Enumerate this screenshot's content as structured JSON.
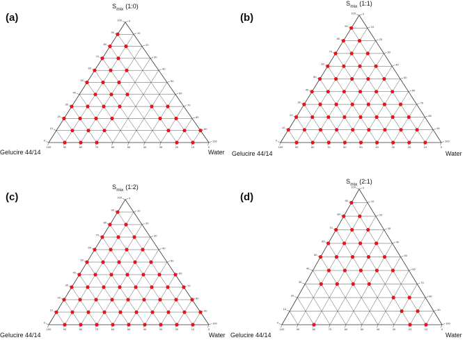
{
  "chart_data": [
    {
      "type": "ternary",
      "panel_label": "(a)",
      "apex_label": {
        "base": "S",
        "sub": "mix",
        "ratio": "(1:0)"
      },
      "left_label": "Gelucire 44/14",
      "right_label": "Water",
      "color": "#e8141c",
      "ticks": [
        0,
        10,
        20,
        30,
        40,
        50,
        60,
        70,
        80,
        90,
        100
      ],
      "points": [
        [
          90,
          10,
          0
        ],
        [
          80,
          20,
          0
        ],
        [
          80,
          10,
          10
        ],
        [
          70,
          30,
          0
        ],
        [
          70,
          20,
          10
        ],
        [
          60,
          40,
          0
        ],
        [
          60,
          30,
          10
        ],
        [
          60,
          20,
          20
        ],
        [
          50,
          50,
          0
        ],
        [
          50,
          40,
          10
        ],
        [
          50,
          30,
          20
        ],
        [
          40,
          50,
          10
        ],
        [
          40,
          40,
          20
        ],
        [
          40,
          30,
          30
        ],
        [
          30,
          70,
          0
        ],
        [
          30,
          60,
          10
        ],
        [
          30,
          50,
          20
        ],
        [
          30,
          40,
          30
        ],
        [
          30,
          20,
          50
        ],
        [
          30,
          10,
          60
        ],
        [
          20,
          80,
          0
        ],
        [
          20,
          70,
          10
        ],
        [
          20,
          60,
          20
        ],
        [
          20,
          50,
          30
        ],
        [
          20,
          20,
          60
        ],
        [
          20,
          10,
          70
        ],
        [
          10,
          80,
          10
        ],
        [
          10,
          70,
          20
        ],
        [
          10,
          60,
          30
        ],
        [
          10,
          20,
          70
        ],
        [
          10,
          10,
          80
        ],
        [
          10,
          0,
          90
        ],
        [
          0,
          90,
          10
        ],
        [
          0,
          80,
          20
        ],
        [
          0,
          70,
          30
        ],
        [
          0,
          20,
          80
        ],
        [
          0,
          10,
          90
        ]
      ]
    },
    {
      "type": "ternary",
      "panel_label": "(b)",
      "apex_label": {
        "base": "S",
        "sub": "mix",
        "ratio": "(1:1)"
      },
      "left_label": "Gelucire 44/14",
      "right_label": "Water",
      "color": "#e8141c",
      "ticks": [
        0,
        10,
        20,
        30,
        40,
        50,
        60,
        70,
        80,
        90,
        100
      ],
      "points": [
        [
          90,
          10,
          0
        ],
        [
          80,
          20,
          0
        ],
        [
          80,
          10,
          10
        ],
        [
          70,
          30,
          0
        ],
        [
          70,
          20,
          10
        ],
        [
          70,
          10,
          20
        ],
        [
          60,
          40,
          0
        ],
        [
          60,
          30,
          10
        ],
        [
          60,
          20,
          20
        ],
        [
          60,
          10,
          30
        ],
        [
          50,
          50,
          0
        ],
        [
          50,
          40,
          10
        ],
        [
          50,
          30,
          20
        ],
        [
          50,
          20,
          30
        ],
        [
          50,
          10,
          40
        ],
        [
          40,
          60,
          0
        ],
        [
          40,
          50,
          10
        ],
        [
          40,
          40,
          20
        ],
        [
          40,
          30,
          30
        ],
        [
          40,
          20,
          40
        ],
        [
          40,
          10,
          50
        ],
        [
          30,
          70,
          0
        ],
        [
          30,
          60,
          10
        ],
        [
          30,
          50,
          20
        ],
        [
          30,
          40,
          30
        ],
        [
          30,
          30,
          40
        ],
        [
          30,
          20,
          50
        ],
        [
          30,
          10,
          60
        ],
        [
          20,
          80,
          0
        ],
        [
          20,
          70,
          10
        ],
        [
          20,
          60,
          20
        ],
        [
          20,
          50,
          30
        ],
        [
          20,
          40,
          40
        ],
        [
          20,
          30,
          50
        ],
        [
          20,
          20,
          60
        ],
        [
          20,
          10,
          70
        ],
        [
          10,
          90,
          0
        ],
        [
          10,
          80,
          10
        ],
        [
          10,
          70,
          20
        ],
        [
          10,
          60,
          30
        ],
        [
          10,
          50,
          40
        ],
        [
          10,
          40,
          50
        ],
        [
          10,
          30,
          60
        ],
        [
          10,
          20,
          70
        ],
        [
          10,
          10,
          80
        ],
        [
          0,
          90,
          10
        ],
        [
          0,
          80,
          20
        ],
        [
          0,
          70,
          30
        ],
        [
          0,
          60,
          40
        ],
        [
          0,
          50,
          50
        ],
        [
          0,
          40,
          60
        ],
        [
          0,
          30,
          70
        ],
        [
          0,
          20,
          80
        ],
        [
          0,
          10,
          90
        ]
      ]
    },
    {
      "type": "ternary",
      "panel_label": "(c)",
      "apex_label": {
        "base": "S",
        "sub": "mix",
        "ratio": "(1:2)"
      },
      "left_label": "Gelucire 44/14",
      "right_label": "Water",
      "color": "#e8141c",
      "ticks": [
        0,
        10,
        20,
        30,
        40,
        50,
        60,
        70,
        80,
        90,
        100
      ],
      "points": [
        [
          90,
          10,
          0
        ],
        [
          80,
          20,
          0
        ],
        [
          80,
          10,
          10
        ],
        [
          70,
          30,
          0
        ],
        [
          70,
          20,
          10
        ],
        [
          70,
          10,
          20
        ],
        [
          60,
          40,
          0
        ],
        [
          60,
          30,
          10
        ],
        [
          60,
          20,
          20
        ],
        [
          60,
          10,
          30
        ],
        [
          50,
          50,
          0
        ],
        [
          50,
          40,
          10
        ],
        [
          50,
          30,
          20
        ],
        [
          50,
          20,
          30
        ],
        [
          50,
          10,
          40
        ],
        [
          40,
          60,
          0
        ],
        [
          40,
          50,
          10
        ],
        [
          40,
          40,
          20
        ],
        [
          40,
          30,
          30
        ],
        [
          40,
          20,
          40
        ],
        [
          40,
          10,
          50
        ],
        [
          40,
          0,
          60
        ],
        [
          30,
          70,
          0
        ],
        [
          30,
          60,
          10
        ],
        [
          30,
          50,
          20
        ],
        [
          30,
          40,
          30
        ],
        [
          30,
          30,
          40
        ],
        [
          30,
          20,
          50
        ],
        [
          30,
          10,
          60
        ],
        [
          30,
          0,
          70
        ],
        [
          20,
          80,
          0
        ],
        [
          20,
          70,
          10
        ],
        [
          20,
          60,
          20
        ],
        [
          20,
          50,
          30
        ],
        [
          20,
          40,
          40
        ],
        [
          20,
          30,
          50
        ],
        [
          20,
          20,
          60
        ],
        [
          20,
          10,
          70
        ],
        [
          20,
          0,
          80
        ],
        [
          10,
          90,
          0
        ],
        [
          10,
          80,
          10
        ],
        [
          10,
          70,
          20
        ],
        [
          10,
          60,
          30
        ],
        [
          10,
          50,
          40
        ],
        [
          10,
          40,
          50
        ],
        [
          10,
          30,
          60
        ],
        [
          10,
          20,
          70
        ],
        [
          10,
          10,
          80
        ],
        [
          10,
          0,
          90
        ],
        [
          0,
          90,
          10
        ],
        [
          0,
          80,
          20
        ],
        [
          0,
          70,
          30
        ],
        [
          0,
          60,
          40
        ],
        [
          0,
          50,
          50
        ],
        [
          0,
          40,
          60
        ],
        [
          0,
          30,
          70
        ],
        [
          0,
          20,
          80
        ],
        [
          0,
          10,
          90
        ]
      ]
    },
    {
      "type": "ternary",
      "panel_label": "(d)",
      "apex_label": {
        "base": "S",
        "sub": "mix",
        "ratio": "(2:1)"
      },
      "left_label": "Gelucire 44/14",
      "right_label": "Water",
      "color": "#e8141c",
      "ticks": [
        0,
        10,
        20,
        30,
        40,
        50,
        60,
        70,
        80,
        90,
        100
      ],
      "points": [
        [
          90,
          10,
          0
        ],
        [
          80,
          20,
          0
        ],
        [
          80,
          10,
          10
        ],
        [
          70,
          30,
          0
        ],
        [
          70,
          20,
          10
        ],
        [
          70,
          10,
          20
        ],
        [
          60,
          40,
          0
        ],
        [
          60,
          30,
          10
        ],
        [
          60,
          20,
          20
        ],
        [
          60,
          10,
          30
        ],
        [
          50,
          50,
          0
        ],
        [
          50,
          40,
          10
        ],
        [
          50,
          30,
          20
        ],
        [
          50,
          20,
          30
        ],
        [
          50,
          10,
          40
        ],
        [
          40,
          50,
          10
        ],
        [
          40,
          40,
          20
        ],
        [
          40,
          30,
          30
        ],
        [
          40,
          20,
          40
        ],
        [
          40,
          10,
          50
        ],
        [
          30,
          60,
          10
        ],
        [
          30,
          50,
          20
        ],
        [
          30,
          40,
          30
        ],
        [
          30,
          30,
          40
        ],
        [
          20,
          20,
          60
        ],
        [
          20,
          10,
          70
        ],
        [
          10,
          20,
          70
        ],
        [
          10,
          10,
          80
        ],
        [
          0,
          80,
          20
        ],
        [
          0,
          20,
          80
        ],
        [
          0,
          10,
          90
        ]
      ]
    }
  ]
}
